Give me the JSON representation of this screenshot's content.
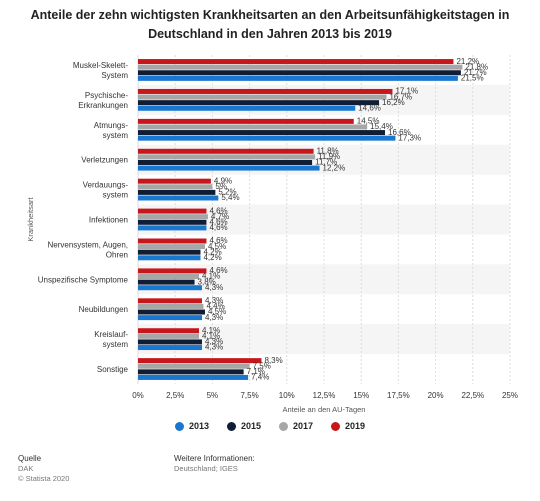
{
  "title": "Anteile der zehn wichtigsten Krankheitsarten an den Arbeitsunfähigkeitstagen in Deutschland in den Jahren 2013 bis 2019",
  "chart_data": {
    "type": "bar",
    "orientation": "horizontal",
    "categories": [
      [
        "Muskel-Skelett-",
        "System"
      ],
      [
        "Psychische-",
        "Erkrankungen"
      ],
      [
        "Atmungs-",
        "system"
      ],
      [
        "Verletzungen"
      ],
      [
        "Verdauungs-",
        "system"
      ],
      [
        "Infektionen"
      ],
      [
        "Nervensystem, Augen,",
        "Ohren"
      ],
      [
        "Unspezifische Symptome"
      ],
      [
        "Neubildungen"
      ],
      [
        "Kreislauf-",
        "system"
      ],
      [
        "Sonstige"
      ]
    ],
    "series": [
      {
        "name": "2019",
        "color": "#c8161d",
        "values": [
          21.2,
          17.1,
          14.5,
          11.8,
          4.9,
          4.6,
          4.6,
          4.6,
          4.3,
          4.1,
          8.3
        ],
        "labels": [
          "21,2%",
          "17,1%",
          "14,5%",
          "11,8%",
          "4,9%",
          "4,6%",
          "4,6%",
          "4,6%",
          "4,3%",
          "4,1%",
          "8,3%"
        ]
      },
      {
        "name": "2017",
        "color": "#a6a6a6",
        "values": [
          21.8,
          16.7,
          15.4,
          11.9,
          5.0,
          4.7,
          4.5,
          4.1,
          4.4,
          4.1,
          7.5
        ],
        "labels": [
          "21,8%",
          "16,7%",
          "15,4%",
          "11,9%",
          "5%",
          "4,7%",
          "4,5%",
          "4,1%",
          "4,4%",
          "4,1%",
          "7,5%"
        ]
      },
      {
        "name": "2015",
        "color": "#0f1e36",
        "values": [
          21.7,
          16.2,
          16.6,
          11.7,
          5.2,
          4.6,
          4.2,
          3.8,
          4.5,
          4.3,
          7.1
        ],
        "labels": [
          "21,7%",
          "16,2%",
          "16,6%",
          "11,7%",
          "5,2%",
          "4,6%",
          "4,2%",
          "3,8%",
          "4,5%",
          "4,3%",
          "7,1%"
        ]
      },
      {
        "name": "2013",
        "color": "#1977d0",
        "values": [
          21.5,
          14.6,
          17.3,
          12.2,
          5.4,
          4.6,
          4.2,
          4.3,
          4.3,
          4.3,
          7.4
        ],
        "labels": [
          "21,5%",
          "14,6%",
          "17,3%",
          "12,2%",
          "5,4%",
          "4,6%",
          "4,2%",
          "4,3%",
          "4,3%",
          "4,3%",
          "7,4%"
        ]
      }
    ],
    "xlim": [
      0,
      25
    ],
    "xticks": [
      0,
      2.5,
      5,
      7.5,
      10,
      12.5,
      15,
      17.5,
      20,
      22.5,
      25
    ],
    "xtick_labels": [
      "0%",
      "2,5%",
      "5%",
      "7,5%",
      "10%",
      "12,5%",
      "15%",
      "17,5%",
      "20%",
      "22,5%",
      "25%"
    ],
    "xlabel": "Anteile an den AU-Tagen",
    "ylabel": "Krankheitsart",
    "grid": true,
    "legend_position": "bottom"
  },
  "legend": [
    {
      "label": "2013",
      "color": "#1977d0"
    },
    {
      "label": "2015",
      "color": "#0f1e36"
    },
    {
      "label": "2017",
      "color": "#a6a6a6"
    },
    {
      "label": "2019",
      "color": "#c8161d"
    }
  ],
  "footer": {
    "source_heading": "Quelle",
    "source_name": "DAK",
    "copyright": "© Statista 2020",
    "info_heading": "Weitere Informationen:",
    "info_text": "Deutschland; IGES"
  }
}
